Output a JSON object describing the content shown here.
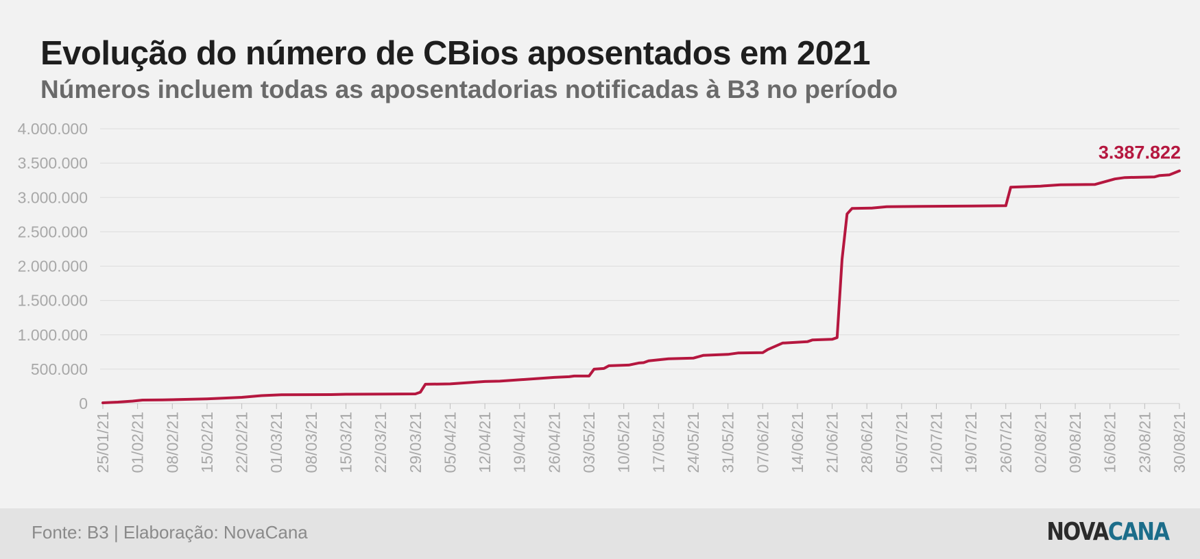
{
  "colors": {
    "line": "#b5173f",
    "grid": "#dcdcdc",
    "tick_text": "#a8a8a8",
    "title": "#1e1e1e",
    "subtitle": "#6a6a6a",
    "footer_bg": "#e3e3e3",
    "logo_dark": "#2b2b2b",
    "logo_accent": "#1c6d8a"
  },
  "footer": {
    "source": "Fonte: B3 | Elaboração: NovaCana",
    "logo_part1": "NOVA",
    "logo_part2": "CANA"
  },
  "chart_data": {
    "type": "line",
    "title": "Evolução do número de CBios aposentados em 2021",
    "subtitle": "Números incluem todas as aposentadorias notificadas à B3 no período",
    "xlabel": "",
    "ylabel": "",
    "ylim": [
      0,
      4000000
    ],
    "yticks": [
      0,
      500000,
      1000000,
      1500000,
      2000000,
      2500000,
      3000000,
      3500000,
      4000000
    ],
    "ytick_labels": [
      "0",
      "500.000",
      "1.000.000",
      "1.500.000",
      "2.000.000",
      "2.500.000",
      "3.000.000",
      "3.500.000",
      "4.000.000"
    ],
    "xtick_labels": [
      "25/01/21",
      "01/02/21",
      "08/02/21",
      "15/02/21",
      "22/02/21",
      "01/03/21",
      "08/03/21",
      "15/03/21",
      "22/03/21",
      "29/03/21",
      "05/04/21",
      "12/04/21",
      "19/04/21",
      "26/04/21",
      "03/05/21",
      "10/05/21",
      "17/05/21",
      "24/05/21",
      "31/05/21",
      "07/06/21",
      "14/06/21",
      "21/06/21",
      "28/06/21",
      "05/07/21",
      "12/07/21",
      "19/07/21",
      "26/07/21",
      "02/08/21",
      "09/08/21",
      "16/08/21",
      "23/08/21",
      "30/08/21"
    ],
    "grid": true,
    "legend": "none",
    "end_label": "3.387.822",
    "series": [
      {
        "points": [
          [
            "25/01/21",
            10000
          ],
          [
            "28/01/21",
            20000
          ],
          [
            "31/01/21",
            35000
          ],
          [
            "02/02/21",
            50000
          ],
          [
            "06/02/21",
            52000
          ],
          [
            "15/02/21",
            68000
          ],
          [
            "22/02/21",
            90000
          ],
          [
            "26/02/21",
            115000
          ],
          [
            "02/03/21",
            128000
          ],
          [
            "12/03/21",
            130000
          ],
          [
            "15/03/21",
            135000
          ],
          [
            "23/03/21",
            138000
          ],
          [
            "29/03/21",
            140000
          ],
          [
            "30/03/21",
            165000
          ],
          [
            "31/03/21",
            280000
          ],
          [
            "05/04/21",
            285000
          ],
          [
            "12/04/21",
            320000
          ],
          [
            "15/04/21",
            325000
          ],
          [
            "26/04/21",
            380000
          ],
          [
            "29/04/21",
            390000
          ],
          [
            "30/04/21",
            400000
          ],
          [
            "03/05/21",
            400000
          ],
          [
            "04/05/21",
            500000
          ],
          [
            "06/05/21",
            510000
          ],
          [
            "07/05/21",
            550000
          ],
          [
            "11/05/21",
            560000
          ],
          [
            "13/05/21",
            590000
          ],
          [
            "14/05/21",
            595000
          ],
          [
            "15/05/21",
            620000
          ],
          [
            "19/05/21",
            650000
          ],
          [
            "24/05/21",
            660000
          ],
          [
            "26/05/21",
            700000
          ],
          [
            "31/05/21",
            715000
          ],
          [
            "02/06/21",
            735000
          ],
          [
            "07/06/21",
            740000
          ],
          [
            "08/06/21",
            785000
          ],
          [
            "11/06/21",
            880000
          ],
          [
            "16/06/21",
            900000
          ],
          [
            "17/06/21",
            925000
          ],
          [
            "21/06/21",
            935000
          ],
          [
            "22/06/21",
            960000
          ],
          [
            "23/06/21",
            2100000
          ],
          [
            "24/06/21",
            2760000
          ],
          [
            "25/06/21",
            2840000
          ],
          [
            "29/06/21",
            2845000
          ],
          [
            "02/07/21",
            2865000
          ],
          [
            "09/07/21",
            2870000
          ],
          [
            "19/07/21",
            2875000
          ],
          [
            "26/07/21",
            2880000
          ],
          [
            "27/07/21",
            3150000
          ],
          [
            "02/08/21",
            3165000
          ],
          [
            "06/08/21",
            3185000
          ],
          [
            "13/08/21",
            3190000
          ],
          [
            "17/08/21",
            3270000
          ],
          [
            "19/08/21",
            3290000
          ],
          [
            "25/08/21",
            3300000
          ],
          [
            "26/08/21",
            3320000
          ],
          [
            "28/08/21",
            3330000
          ],
          [
            "30/08/21",
            3387822
          ]
        ]
      }
    ]
  }
}
